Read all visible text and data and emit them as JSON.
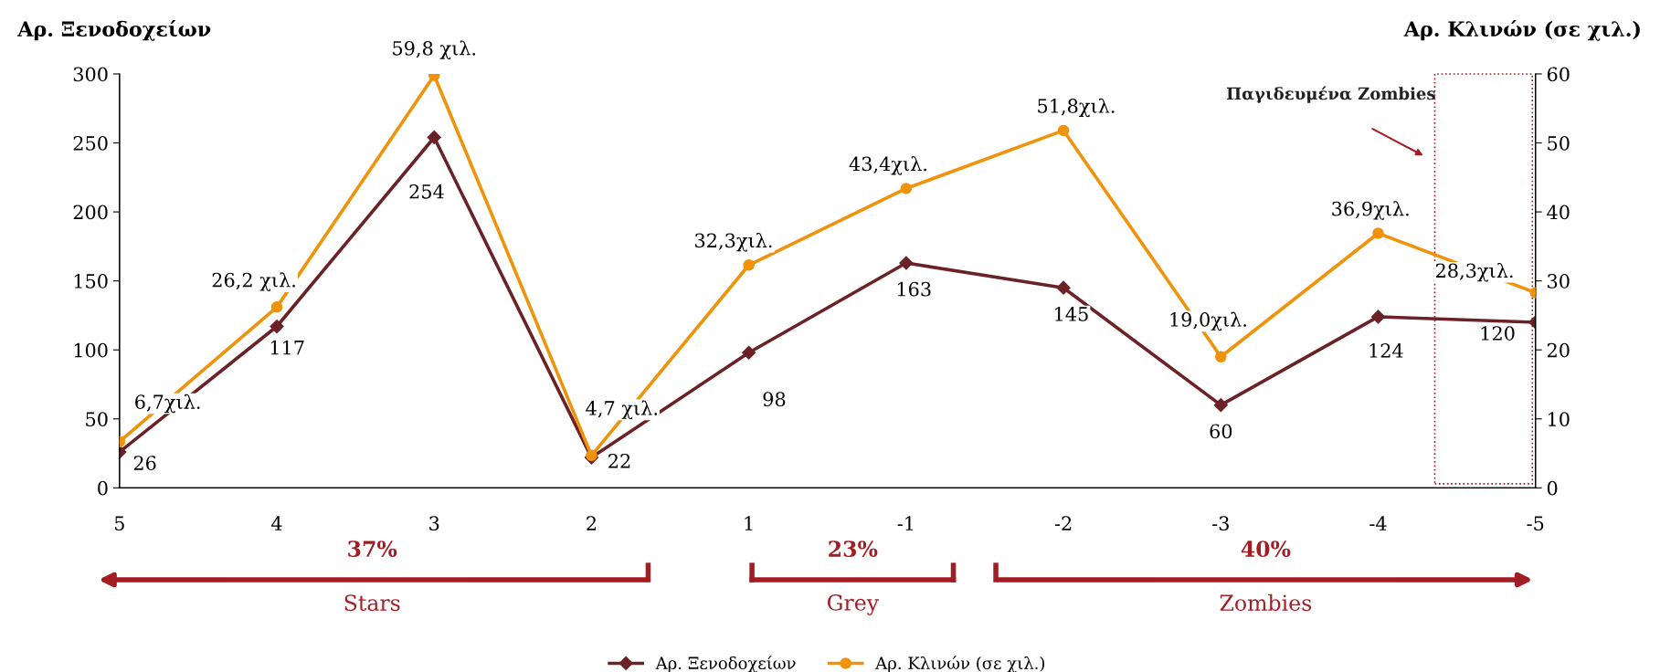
{
  "chart_data": {
    "type": "line",
    "categories": [
      "5",
      "4",
      "3",
      "2",
      "1",
      "-1",
      "-2",
      "-3",
      "-4",
      "-5"
    ],
    "ylabel": "Αρ. Ξενοδοχείων",
    "y2label": "Αρ. Κλινών (σε χιλ.)",
    "ylim": [
      0,
      300
    ],
    "yticks": [
      0,
      50,
      100,
      150,
      200,
      250,
      300
    ],
    "y2lim": [
      0,
      60
    ],
    "y2ticks": [
      0,
      10,
      20,
      30,
      40,
      50,
      60
    ],
    "grid": false,
    "legend": "bottom",
    "series": [
      {
        "name": "Αρ. Ξενοδοχείων",
        "color": "#6b2226",
        "marker": "diamond",
        "values": [
          26,
          117,
          254,
          22,
          98,
          163,
          145,
          60,
          124,
          120
        ],
        "value_labels": [
          "26",
          "117",
          "254",
          "22",
          "98",
          "163",
          "145",
          "60",
          "124",
          "120"
        ]
      },
      {
        "name": "Αρ. Κλινών (σε χιλ.)",
        "color": "#f0930a",
        "marker": "circle",
        "axis": "y2",
        "values": [
          6.7,
          26.2,
          59.8,
          4.7,
          32.3,
          43.4,
          51.8,
          19.0,
          36.9,
          28.3
        ],
        "value_labels": [
          "6,7χιλ.",
          "26,2 χιλ.",
          "59,8 χιλ.",
          "4,7 χιλ.",
          "32,3χιλ.",
          "43,4χιλ.",
          "51,8χιλ.",
          "19,0χιλ.",
          "36,9χιλ.",
          "28,3χιλ."
        ]
      }
    ],
    "annotations": [
      "Παγιδευμένα Zombies",
      "37%",
      "Stars",
      "23%",
      "Grey",
      "40%",
      "Zombies"
    ]
  }
}
